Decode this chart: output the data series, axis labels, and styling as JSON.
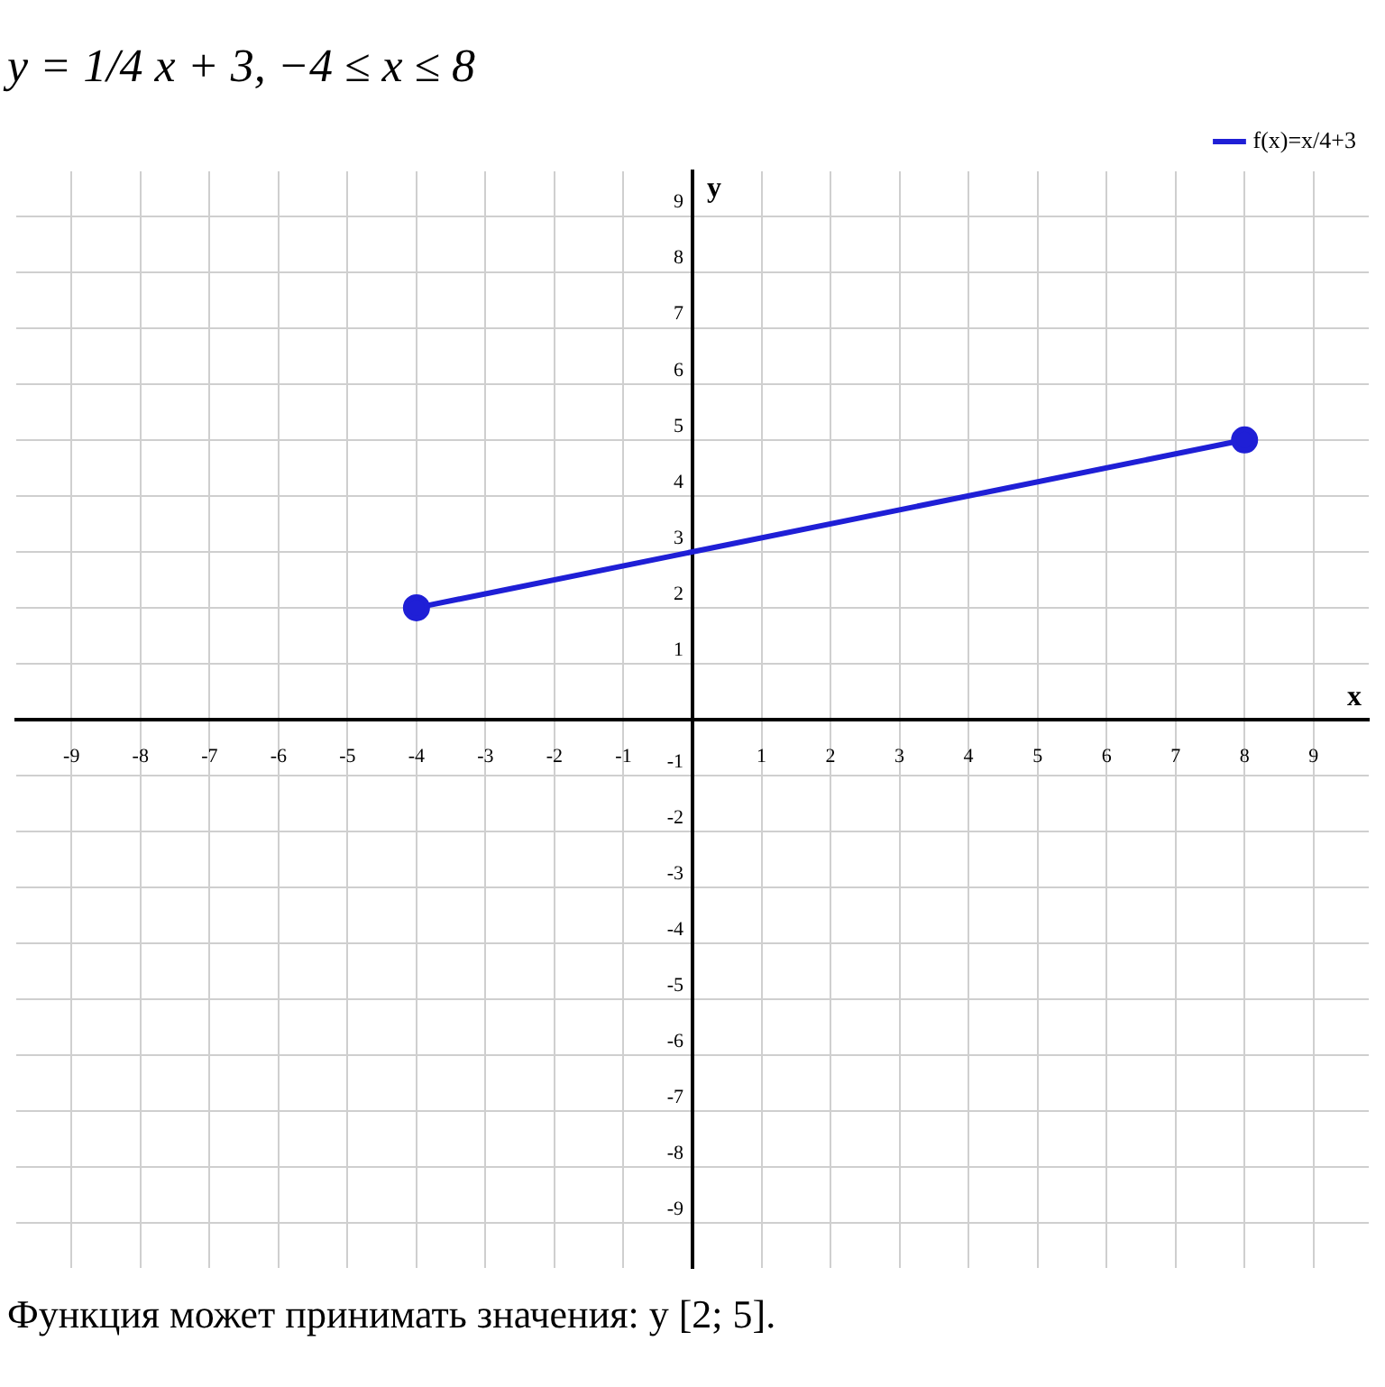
{
  "chart_data": {
    "type": "line",
    "title": "y = 1/4 x + 3,   −4 ≤ x ≤ 8",
    "xlabel": "x",
    "ylabel": "y",
    "x": [
      -4,
      8
    ],
    "series": [
      {
        "name": "f(x)=x/4+3",
        "color": "#1f1fd6",
        "values": [
          2,
          5
        ]
      }
    ],
    "xlim": [
      -9.8,
      9.8
    ],
    "ylim": [
      -9.8,
      9.8
    ],
    "xticks": [
      -9,
      -8,
      -7,
      -6,
      -5,
      -4,
      -3,
      -2,
      -1,
      {
        "value": 0,
        "label": null
      },
      1,
      2,
      3,
      4,
      5,
      6,
      7,
      8,
      9
    ],
    "yticks": [
      -9,
      -8,
      -7,
      -6,
      -5,
      -4,
      -3,
      -2,
      -1,
      {
        "value": 0,
        "label": null
      },
      1,
      2,
      3,
      4,
      5,
      6,
      7,
      8,
      9
    ],
    "grid": true,
    "legend": "top right",
    "marker": "circle",
    "line_style": "solid",
    "annotations": [
      "Функция может принимать значения: y [2; 5]."
    ]
  }
}
